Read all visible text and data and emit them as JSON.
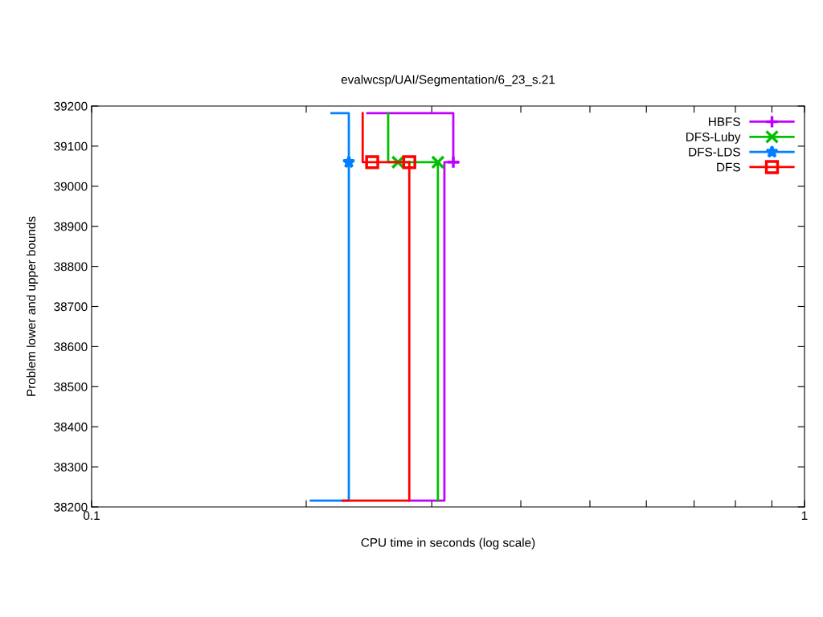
{
  "chart_data": {
    "type": "line",
    "title": "evalwcsp/UAI/Segmentation/6_23_s.21",
    "xlabel": "CPU time in seconds (log scale)",
    "ylabel": "Problem lower and upper bounds",
    "log": "x",
    "xlim": [
      0.1,
      1
    ],
    "ylim": [
      38200,
      39200
    ],
    "xticks": [
      0.1,
      {
        "value": 0.2,
        "label": null
      },
      {
        "value": 0.3,
        "label": null
      },
      {
        "value": 0.4,
        "label": null
      },
      {
        "value": 0.5,
        "label": null
      },
      {
        "value": 0.6,
        "label": null
      },
      {
        "value": 0.7,
        "label": null
      },
      {
        "value": 0.8,
        "label": null
      },
      {
        "value": 0.9,
        "label": null
      },
      1
    ],
    "yticks": [
      38200,
      38300,
      38400,
      38500,
      38600,
      38700,
      38800,
      38900,
      39000,
      39100,
      39200
    ],
    "grid": false,
    "legend": "top right",
    "line_style": "solid",
    "series": [
      {
        "color": "#c000ff",
        "x": [
          0.2436,
          0.3216,
          0.3216,
          0.3267
        ],
        "values": [
          39182,
          39182,
          39060,
          39060
        ]
      },
      {
        "color": "#c000ff",
        "x": [
          0.279,
          0.3125,
          0.3125,
          0.3267
        ],
        "values": [
          38216,
          38216,
          39060,
          39060
        ]
      },
      {
        "type": "scatter",
        "name": "HBFS",
        "color": "#c000ff",
        "marker": "cross",
        "x": [
          0.3216
        ],
        "values": [
          39060
        ]
      },
      {
        "color": "#00c000",
        "x": [
          0.2606,
          0.2606,
          0.306
        ],
        "values": [
          39182,
          39060,
          39060
        ]
      },
      {
        "color": "#00c000",
        "x": [
          0.306,
          0.306
        ],
        "values": [
          38216,
          39060
        ]
      },
      {
        "type": "scatter",
        "name": "DFS-Luby",
        "color": "#00c000",
        "marker": "x",
        "x": [
          0.269,
          0.306
        ],
        "values": [
          39060,
          39060
        ]
      },
      {
        "color": "#0080ff",
        "x": [
          0.217,
          0.2295,
          0.2295
        ],
        "values": [
          39182,
          39182,
          39060
        ]
      },
      {
        "color": "#0080ff",
        "x": [
          0.203,
          0.2295,
          0.2295
        ],
        "values": [
          38216,
          38216,
          39060
        ]
      },
      {
        "type": "scatter",
        "name": "DFS-LDS",
        "color": "#0080ff",
        "marker": "star",
        "x": [
          0.2295
        ],
        "values": [
          39060
        ]
      },
      {
        "color": "#ff0000",
        "x": [
          0.24,
          0.24,
          0.279
        ],
        "values": [
          39182,
          39060,
          39060
        ]
      },
      {
        "color": "#ff0000",
        "x": [
          0.225,
          0.279,
          0.279
        ],
        "values": [
          38216,
          38216,
          39060
        ]
      },
      {
        "type": "scatter",
        "name": "DFS",
        "color": "#ff0000",
        "marker": "square",
        "x": [
          0.2475,
          0.279
        ],
        "values": [
          39060,
          39060
        ]
      }
    ]
  }
}
